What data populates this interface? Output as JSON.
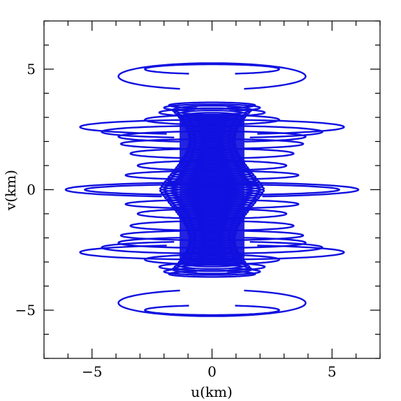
{
  "chart_data": {
    "type": "scatter",
    "subtype": "uv-coverage tracks",
    "title": "",
    "xlabel": "u(km)",
    "ylabel": "v(km)",
    "xlim": [
      -7,
      7
    ],
    "ylim": [
      -7,
      7
    ],
    "xticks_major": [
      -5,
      0,
      5
    ],
    "yticks_major": [
      -5,
      0,
      5
    ],
    "xticks_minor_step": 1,
    "yticks_minor_step": 1,
    "tick_labels_x": [
      "−5",
      "0",
      "5"
    ],
    "tick_labels_y": [
      "−5",
      "0",
      "5"
    ],
    "grid": false,
    "series_color": "#1010e0",
    "arc_half_angle_deg": 72,
    "tracks": [
      {
        "u_radius": 6.1,
        "v_center": 0.0,
        "v_radius": 0.3
      },
      {
        "u_radius": 5.3,
        "v_center": 0.0,
        "v_radius": 0.22
      },
      {
        "u_radius": 5.5,
        "v_center": 2.6,
        "v_radius": 0.3
      },
      {
        "u_radius": 4.6,
        "v_center": 2.4,
        "v_radius": 0.25
      },
      {
        "u_radius": 3.9,
        "v_center": 2.2,
        "v_radius": 0.22
      },
      {
        "u_radius": 3.8,
        "v_center": 1.9,
        "v_radius": 0.2
      },
      {
        "u_radius": 3.4,
        "v_center": 1.5,
        "v_radius": 0.2
      },
      {
        "u_radius": 3.1,
        "v_center": 1.0,
        "v_radius": 0.2
      },
      {
        "u_radius": 3.6,
        "v_center": 0.6,
        "v_radius": 0.18
      },
      {
        "u_radius": 2.8,
        "v_center": 2.9,
        "v_radius": 0.2
      },
      {
        "u_radius": 2.2,
        "v_center": 3.2,
        "v_radius": 0.16
      },
      {
        "u_radius": 2.0,
        "v_center": 3.4,
        "v_radius": 0.14
      },
      {
        "u_radius": 1.8,
        "v_center": 3.5,
        "v_radius": 0.12
      },
      {
        "u_radius": 5.5,
        "v_center": -2.6,
        "v_radius": 0.3
      },
      {
        "u_radius": 4.6,
        "v_center": -2.4,
        "v_radius": 0.25
      },
      {
        "u_radius": 3.9,
        "v_center": -2.2,
        "v_radius": 0.22
      },
      {
        "u_radius": 3.8,
        "v_center": -1.9,
        "v_radius": 0.2
      },
      {
        "u_radius": 3.4,
        "v_center": -1.5,
        "v_radius": 0.2
      },
      {
        "u_radius": 3.1,
        "v_center": -1.0,
        "v_radius": 0.2
      },
      {
        "u_radius": 3.6,
        "v_center": -0.6,
        "v_radius": 0.18
      },
      {
        "u_radius": 2.8,
        "v_center": -2.9,
        "v_radius": 0.2
      },
      {
        "u_radius": 2.2,
        "v_center": -3.2,
        "v_radius": 0.16
      },
      {
        "u_radius": 2.0,
        "v_center": -3.4,
        "v_radius": 0.14
      },
      {
        "u_radius": 1.8,
        "v_center": -3.5,
        "v_radius": 0.12
      },
      {
        "u_radius": 3.9,
        "v_center": 4.7,
        "v_radius": 0.55
      },
      {
        "u_radius": 3.9,
        "v_center": -4.7,
        "v_radius": 0.55
      },
      {
        "u_radius": 2.8,
        "v_center": 5.0,
        "v_radius": 0.2
      },
      {
        "u_radius": 2.8,
        "v_center": -5.0,
        "v_radius": 0.2
      }
    ]
  }
}
